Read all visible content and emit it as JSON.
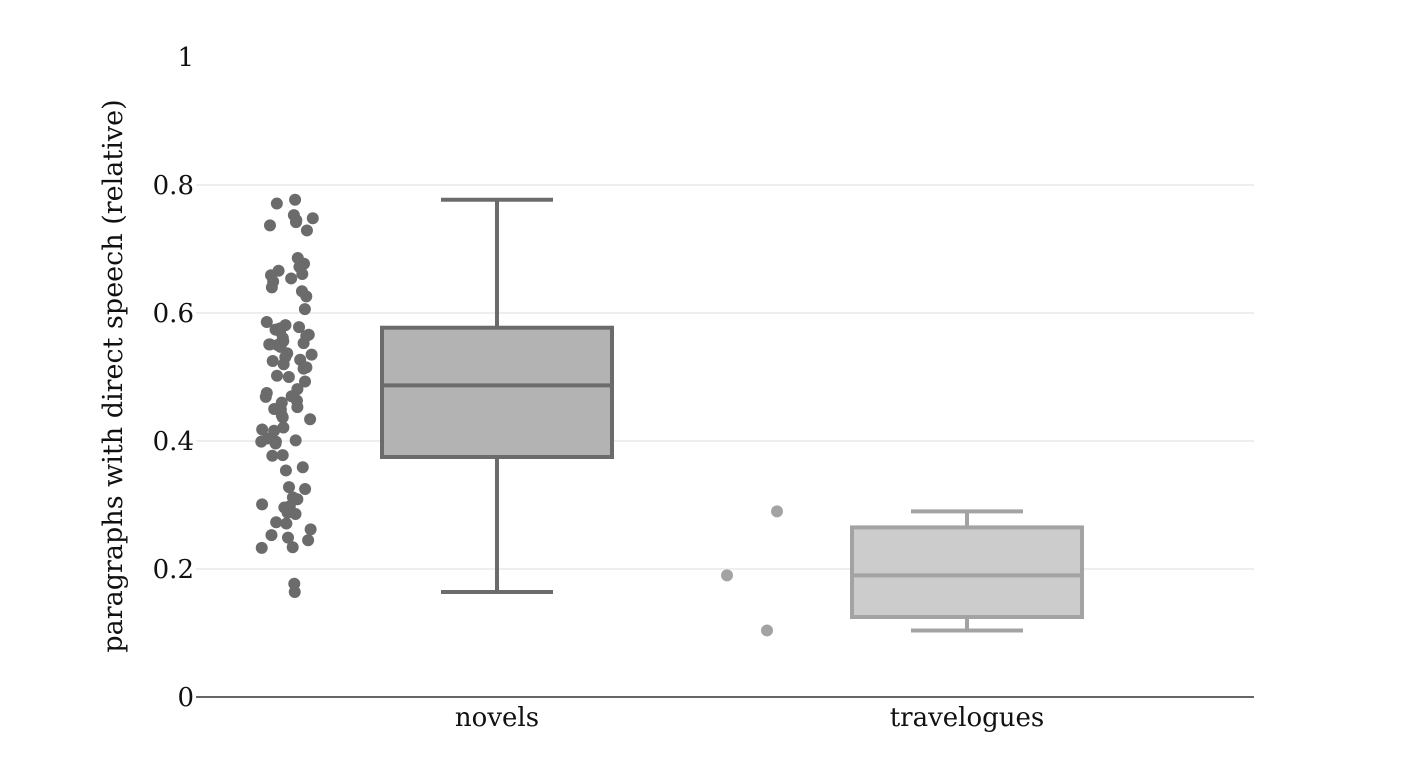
{
  "chart_data": {
    "type": "box",
    "title": "",
    "xlabel": "",
    "ylabel": "paragraphs with direct speech (relative)",
    "ylim": [
      0,
      1
    ],
    "yticks": [
      0,
      0.2,
      0.4,
      0.6,
      0.8,
      1
    ],
    "ytick_labels": [
      "0",
      "0.2",
      "0.4",
      "0.6",
      "0.8",
      "1"
    ],
    "grid": true,
    "categories": [
      "novels",
      "travelogues"
    ],
    "series": [
      {
        "category": "novels",
        "color": "#6b6b6b",
        "fill": "#b3b3b3",
        "box": {
          "min": 0.164,
          "q1": 0.375,
          "median": 0.487,
          "q3": 0.577,
          "max": 0.777
        },
        "points": [
          0.777,
          0.771,
          0.753,
          0.748,
          0.745,
          0.742,
          0.737,
          0.729,
          0.686,
          0.677,
          0.672,
          0.666,
          0.661,
          0.659,
          0.654,
          0.649,
          0.64,
          0.634,
          0.626,
          0.606,
          0.586,
          0.581,
          0.578,
          0.576,
          0.574,
          0.571,
          0.566,
          0.564,
          0.561,
          0.556,
          0.553,
          0.551,
          0.551,
          0.55,
          0.547,
          0.537,
          0.535,
          0.531,
          0.527,
          0.525,
          0.52,
          0.515,
          0.513,
          0.502,
          0.5,
          0.493,
          0.481,
          0.475,
          0.47,
          0.469,
          0.463,
          0.46,
          0.453,
          0.45,
          0.449,
          0.44,
          0.437,
          0.434,
          0.421,
          0.418,
          0.416,
          0.404,
          0.401,
          0.399,
          0.399,
          0.396,
          0.378,
          0.377,
          0.359,
          0.354,
          0.328,
          0.325,
          0.312,
          0.309,
          0.301,
          0.298,
          0.296,
          0.288,
          0.286,
          0.273,
          0.271,
          0.262,
          0.253,
          0.249,
          0.245,
          0.234,
          0.233,
          0.177,
          0.164
        ]
      },
      {
        "category": "travelogues",
        "color": "#a3a3a3",
        "fill": "#cccccc",
        "box": {
          "min": 0.104,
          "q1": 0.125,
          "median": 0.19,
          "q3": 0.265,
          "max": 0.29
        },
        "points": [
          0.29,
          0.19,
          0.104
        ]
      }
    ]
  }
}
